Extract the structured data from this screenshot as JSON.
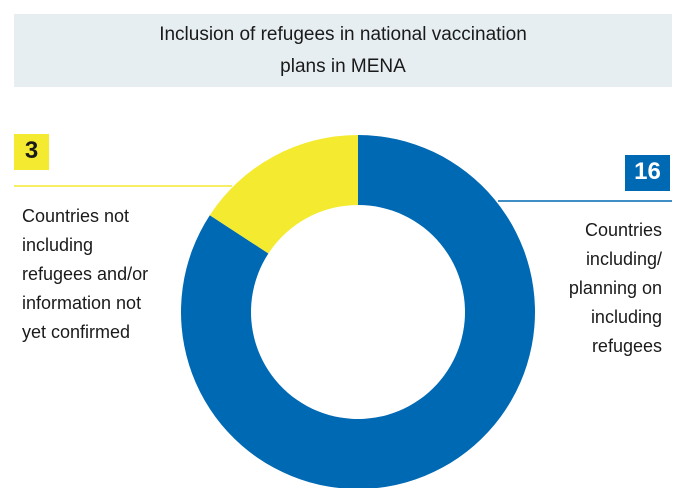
{
  "chart_data": {
    "type": "pie",
    "style": "donut",
    "title_lines": [
      "Inclusion of refugees in national vaccination",
      "plans in MENA"
    ],
    "slices": [
      {
        "value": 16,
        "label_lines": [
          "Countries",
          "including/",
          "planning on",
          "including",
          "refugees"
        ],
        "color": "#0069b4"
      },
      {
        "value": 3,
        "label_lines": [
          "Countries not",
          "including",
          "refugees and/or",
          "information not",
          "yet confirmed"
        ],
        "color": "#f4ea2f"
      }
    ]
  },
  "colors": {
    "title_background": "#e6eef2",
    "leader_line_left": "#f4ea2f",
    "leader_line_right": "#0069b4"
  }
}
